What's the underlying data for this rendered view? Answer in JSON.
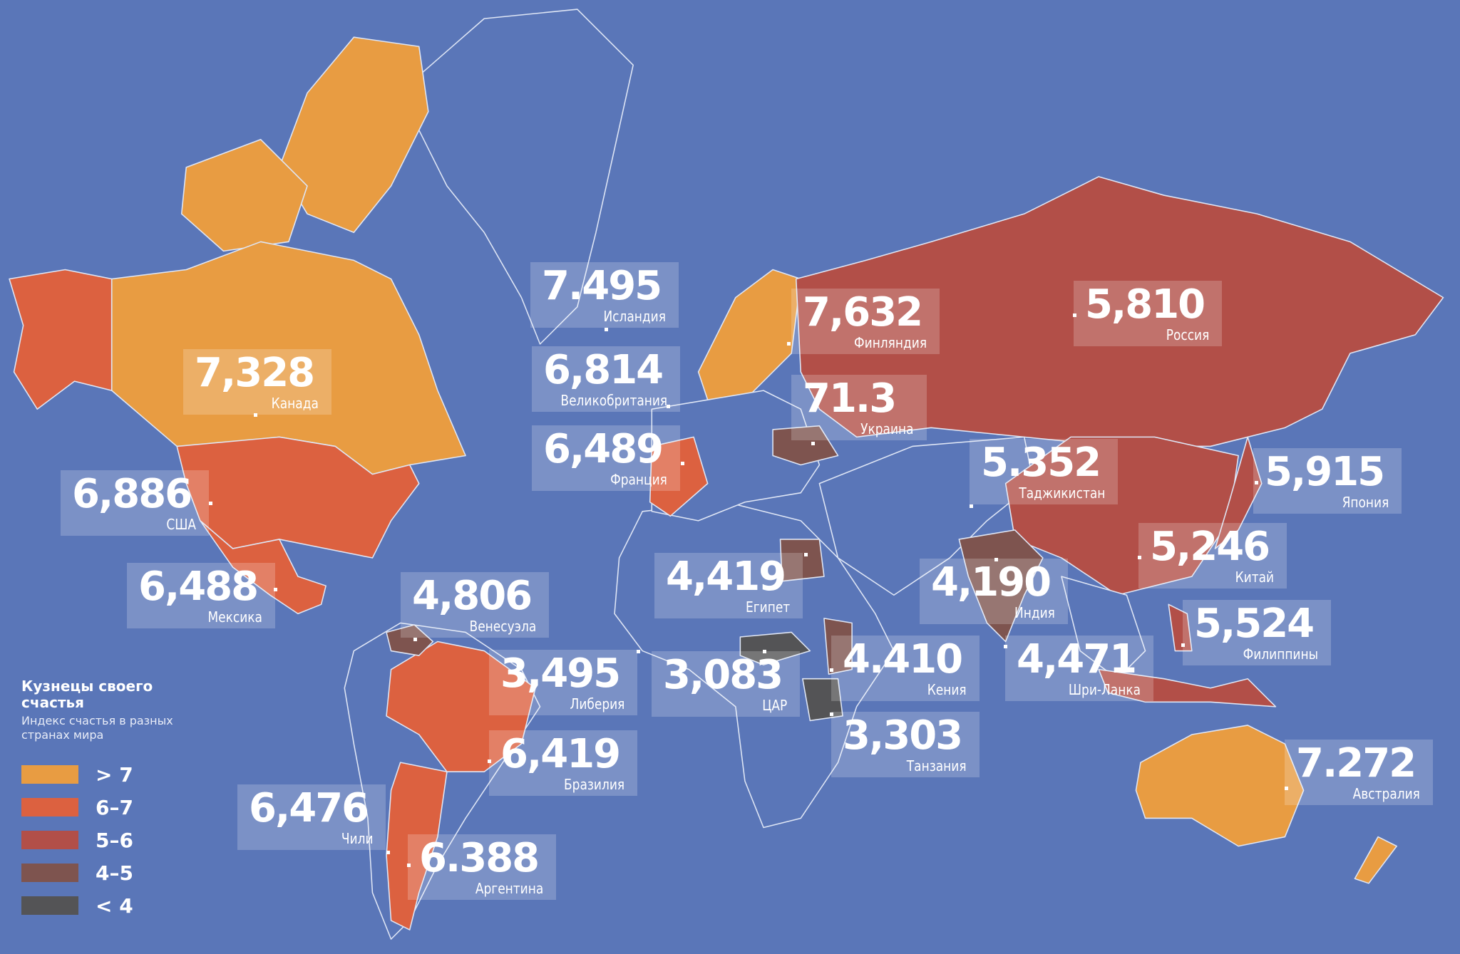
{
  "legend": {
    "title": "Кузнецы своего счастья",
    "subtitle": "Индекс счастья в разных странах мира",
    "items": [
      {
        "label": "> 7",
        "color": "#e89c42"
      },
      {
        "label": "6–7",
        "color": "#dc6140"
      },
      {
        "label": "5–6",
        "color": "#b24f48"
      },
      {
        "label": "4–5",
        "color": "#7e544f"
      },
      {
        "label": "< 4",
        "color": "#545456"
      }
    ]
  },
  "colors": {
    "ocean": "#5a76b8",
    "borders": "#dfe6f5"
  },
  "countries": [
    {
      "name": "Исландия",
      "value": "7.495"
    },
    {
      "name": "Канада",
      "value": "7,328"
    },
    {
      "name": "Великобритания",
      "value": "6,814"
    },
    {
      "name": "Франция",
      "value": "6,489"
    },
    {
      "name": "Финляндия",
      "value": "7,632"
    },
    {
      "name": "Россия",
      "value": "5,810"
    },
    {
      "name": "Украина",
      "value": "71.3"
    },
    {
      "name": "Таджикистан",
      "value": "5.352"
    },
    {
      "name": "Япония",
      "value": "5,915"
    },
    {
      "name": "Китай",
      "value": "5,246"
    },
    {
      "name": "США",
      "value": "6,886"
    },
    {
      "name": "Мексика",
      "value": "6,488"
    },
    {
      "name": "Венесуэла",
      "value": "4,806"
    },
    {
      "name": "Египет",
      "value": "4,419"
    },
    {
      "name": "Индия",
      "value": "4,190"
    },
    {
      "name": "Филиппины",
      "value": "5,524"
    },
    {
      "name": "Либерия",
      "value": "3,495"
    },
    {
      "name": "ЦАР",
      "value": "3,083"
    },
    {
      "name": "Кения",
      "value": "4.410"
    },
    {
      "name": "Шри-Ланка",
      "value": "4,471"
    },
    {
      "name": "Танзания",
      "value": "3,303"
    },
    {
      "name": "Бразилия",
      "value": "6,419"
    },
    {
      "name": "Чили",
      "value": "6,476"
    },
    {
      "name": "Аргентина",
      "value": "6.388"
    },
    {
      "name": "Австралия",
      "value": "7.272"
    }
  ]
}
